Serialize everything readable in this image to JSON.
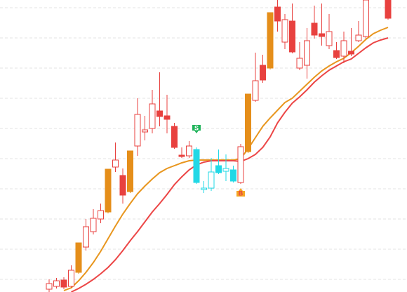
{
  "chart_data": {
    "type": "candlestick",
    "categories": [
      null,
      null,
      null,
      null,
      null,
      null,
      null,
      null,
      null,
      null,
      null,
      null,
      null,
      null,
      null,
      null,
      null,
      null,
      null,
      null,
      null,
      null,
      null,
      null,
      null,
      null,
      null,
      null,
      null,
      null,
      null,
      null,
      null,
      null,
      null,
      null,
      null,
      null,
      null,
      null,
      null,
      null,
      null,
      null,
      null,
      null,
      null
    ],
    "open": [
      4,
      8,
      17,
      8,
      28,
      64,
      86,
      104,
      114,
      178,
      166,
      143,
      208,
      228,
      233,
      258,
      251,
      236,
      195,
      194,
      203,
      146,
      148,
      180,
      172,
      174,
      156,
      200,
      273,
      323,
      319,
      406,
      356,
      386,
      319,
      323,
      383,
      368,
      351,
      344,
      336,
      343,
      358,
      364,
      null,
      null,
      416
    ],
    "high": [
      18,
      20,
      21,
      38,
      70,
      104,
      118,
      126,
      175,
      213,
      176,
      201,
      276,
      251,
      288,
      313,
      281,
      241,
      206,
      215,
      206,
      158,
      191,
      203,
      196,
      180,
      211,
      282,
      341,
      338,
      398,
      416,
      396,
      411,
      356,
      376,
      408,
      411,
      396,
      356,
      371,
      376,
      386,
      416,
      null,
      null,
      416
    ],
    "low": [
      0,
      5,
      4,
      6,
      26,
      59,
      82,
      98,
      112,
      171,
      126,
      141,
      194,
      216,
      226,
      236,
      226,
      204,
      191,
      191,
      154,
      141,
      144,
      168,
      158,
      156,
      154,
      198,
      271,
      298,
      317,
      371,
      346,
      340,
      316,
      304,
      361,
      351,
      346,
      332,
      326,
      336,
      356,
      361,
      null,
      null,
      388
    ],
    "close": [
      12,
      16,
      7,
      31,
      70,
      93,
      105,
      116,
      175,
      188,
      138,
      201,
      253,
      231,
      268,
      250,
      246,
      206,
      193,
      208,
      156,
      148,
      171,
      170,
      176,
      158,
      207,
      282,
      301,
      302,
      398,
      386,
      388,
      342,
      333,
      358,
      366,
      364,
      371,
      334,
      358,
      339,
      366,
      416,
      null,
      null,
      390
    ],
    "colors": [
      "#e8413f",
      "#e8413f",
      "#e8413f",
      "#e8413f",
      "#e58e1a",
      "#e8413f",
      "#e8413f",
      "#e8413f",
      "#e58e1a",
      "#e8413f",
      "#e8413f",
      "#e58e1a",
      "#e8413f",
      "#e8413f",
      "#e8413f",
      "#e8413f",
      "#e8413f",
      "#e8413f",
      "#e8413f",
      "#e8413f",
      "#22d8e6",
      "#22d8e6",
      "#22d8e6",
      "#22d8e6",
      "#22d8e6",
      "#22d8e6",
      "#e8413f",
      "#e58e1a",
      "#e8413f",
      "#e8413f",
      "#e58e1a",
      "#e8413f",
      "#e8413f",
      "#e8413f",
      "#e8413f",
      "#e8413f",
      "#e8413f",
      "#e8413f",
      "#e8413f",
      "#e8413f",
      "#e8413f",
      "#e8413f",
      "#e8413f",
      "#e8413f",
      null,
      null,
      "#e8413f"
    ],
    "series": [
      {
        "color": "#e8961e",
        "values": [
          null,
          null,
          2,
          6,
          16,
          28,
          42,
          58,
          76,
          94,
          111,
          126,
          140,
          151,
          161,
          170,
          176,
          180,
          184,
          187,
          188,
          188,
          188,
          188,
          188,
          188,
          190,
          204,
          220,
          236,
          248,
          259,
          270,
          276,
          286,
          296,
          306,
          315,
          322,
          328,
          333,
          341,
          350,
          360,
          368,
          373,
          377
        ]
      },
      {
        "color": "#ec4646",
        "values": [
          null,
          null,
          null,
          0,
          5,
          11,
          18,
          26,
          35,
          46,
          59,
          73,
          86,
          100,
          114,
          126,
          139,
          153,
          164,
          174,
          181,
          185,
          187,
          187,
          187,
          187,
          186,
          190,
          196,
          206,
          221,
          241,
          256,
          269,
          278,
          288,
          299,
          308,
          316,
          322,
          328,
          332,
          340,
          348,
          355,
          359,
          362
        ]
      }
    ],
    "ylim": [
      0,
      416
    ],
    "gridlines": [
      18,
      61,
      104,
      147,
      190,
      233,
      276,
      319,
      362,
      405
    ],
    "signals": [
      {
        "label": "S",
        "index": 20,
        "color": "#1fb35a"
      },
      {
        "label": "B",
        "index": 26,
        "color": "#f5a623"
      }
    ]
  }
}
